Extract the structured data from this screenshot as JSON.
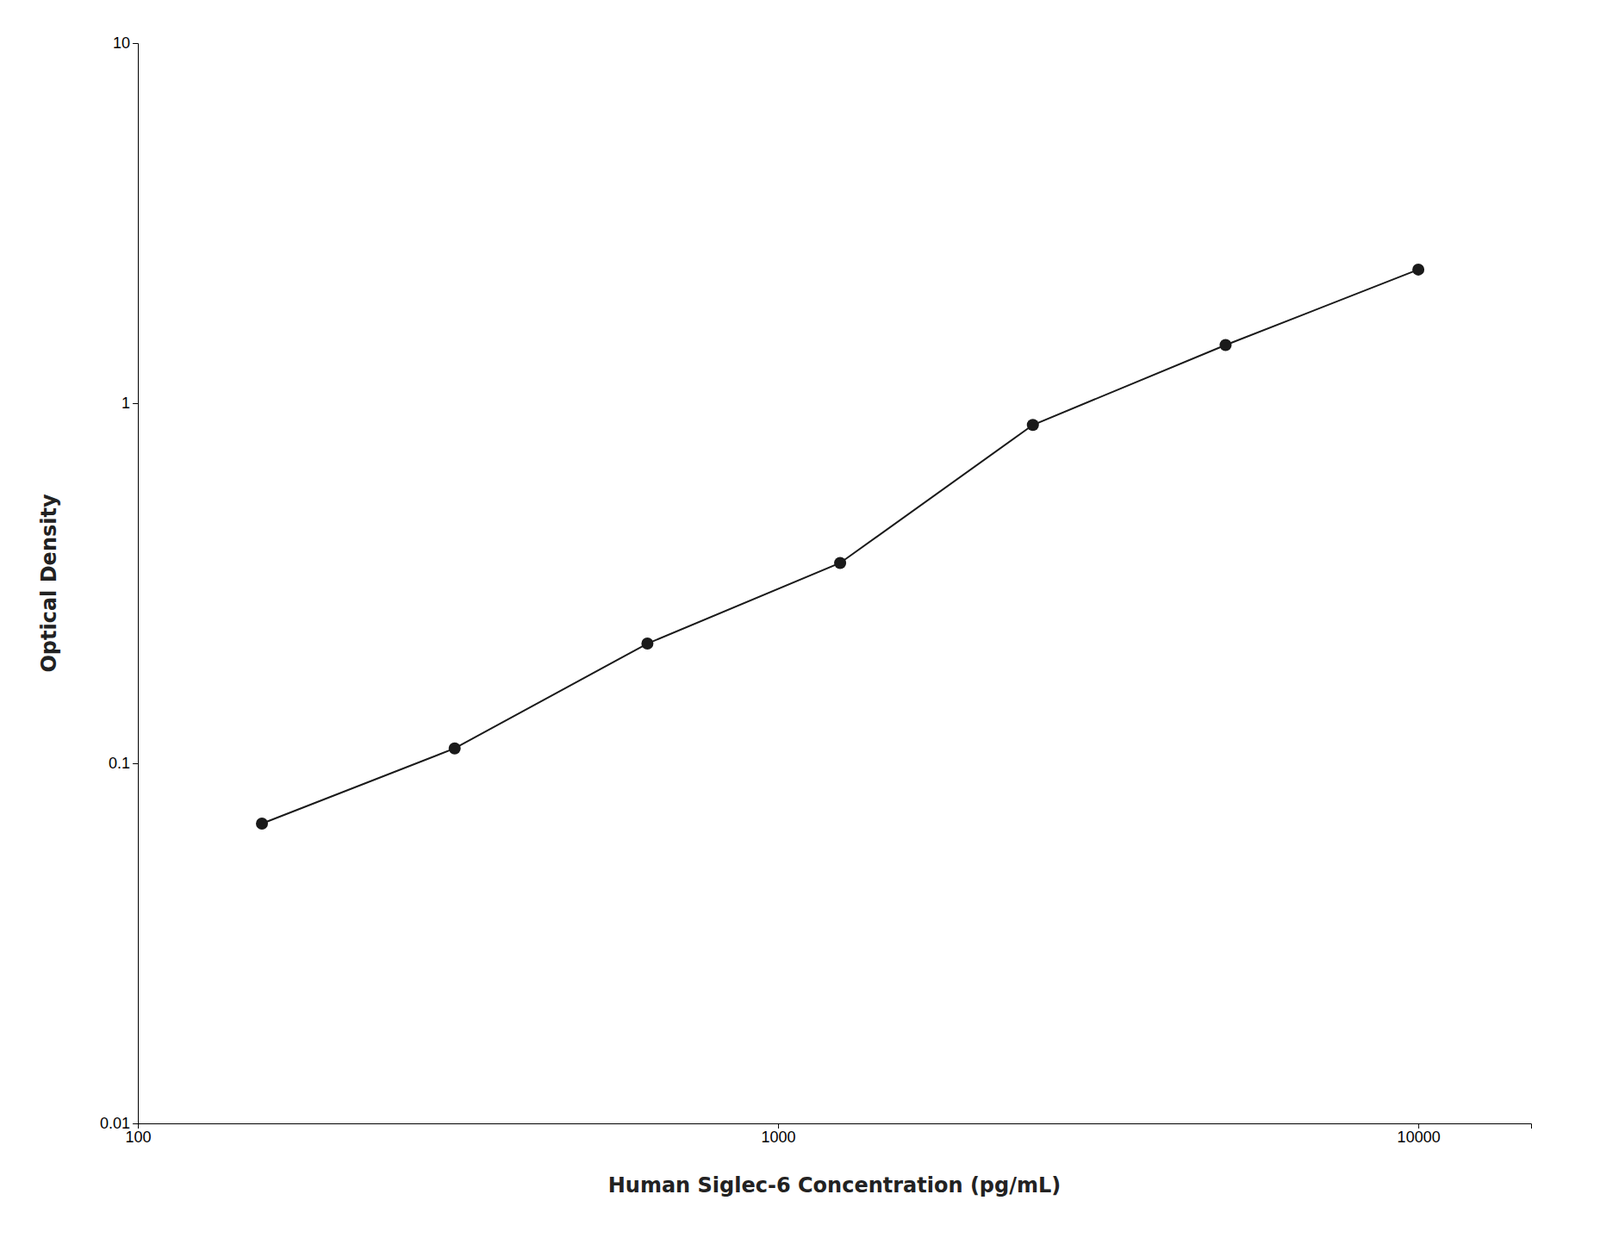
{
  "chart_data": {
    "type": "line",
    "x": [
      156.25,
      312.5,
      625,
      1250,
      2500,
      5000,
      10000
    ],
    "values": [
      0.068,
      0.11,
      0.215,
      0.36,
      0.87,
      1.45,
      2.35
    ],
    "x_label": "Human Siglec-6 Concentration (pg/mL)",
    "y_label": "Optical Density",
    "xlim": [
      100,
      15000
    ],
    "ylim": [
      0.01,
      10
    ],
    "xticks": [
      100,
      1000,
      10000
    ],
    "yticks": [
      0.01,
      0.1,
      1,
      10
    ],
    "log": true,
    "grid": false,
    "color": "#1a1a1a",
    "marker": "circle"
  }
}
